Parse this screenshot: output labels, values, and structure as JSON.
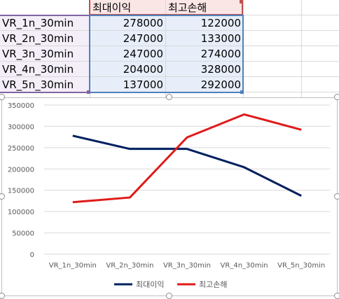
{
  "sheet": {
    "headers": [
      "최대이익",
      "최고손해"
    ],
    "rows": [
      {
        "label": "VR_1n_30min",
        "max_profit": "278000",
        "max_loss": "122000"
      },
      {
        "label": "VR_2n_30min",
        "max_profit": "247000",
        "max_loss": "133000"
      },
      {
        "label": "VR_3n_30min",
        "max_profit": "247000",
        "max_loss": "274000"
      },
      {
        "label": "VR_4n_30min",
        "max_profit": "204000",
        "max_loss": "328000"
      },
      {
        "label": "VR_5n_30min",
        "max_profit": "137000",
        "max_loss": "292000"
      }
    ]
  },
  "chart_data": {
    "type": "line",
    "categories": [
      "VR_1n_30min",
      "VR_2n_30min",
      "VR_3n_30min",
      "VR_4n_30min",
      "VR_5n_30min"
    ],
    "series": [
      {
        "name": "최대이익",
        "values": [
          278000,
          247000,
          247000,
          204000,
          137000
        ],
        "color": "#002060"
      },
      {
        "name": "최고손해",
        "values": [
          122000,
          133000,
          274000,
          328000,
          292000
        ],
        "color": "#e01a1a"
      }
    ],
    "yticks": [
      "0",
      "50000",
      "100000",
      "150000",
      "200000",
      "250000",
      "300000",
      "350000"
    ],
    "ylim": [
      0,
      350000
    ],
    "grid": true,
    "legend": "bottom"
  }
}
